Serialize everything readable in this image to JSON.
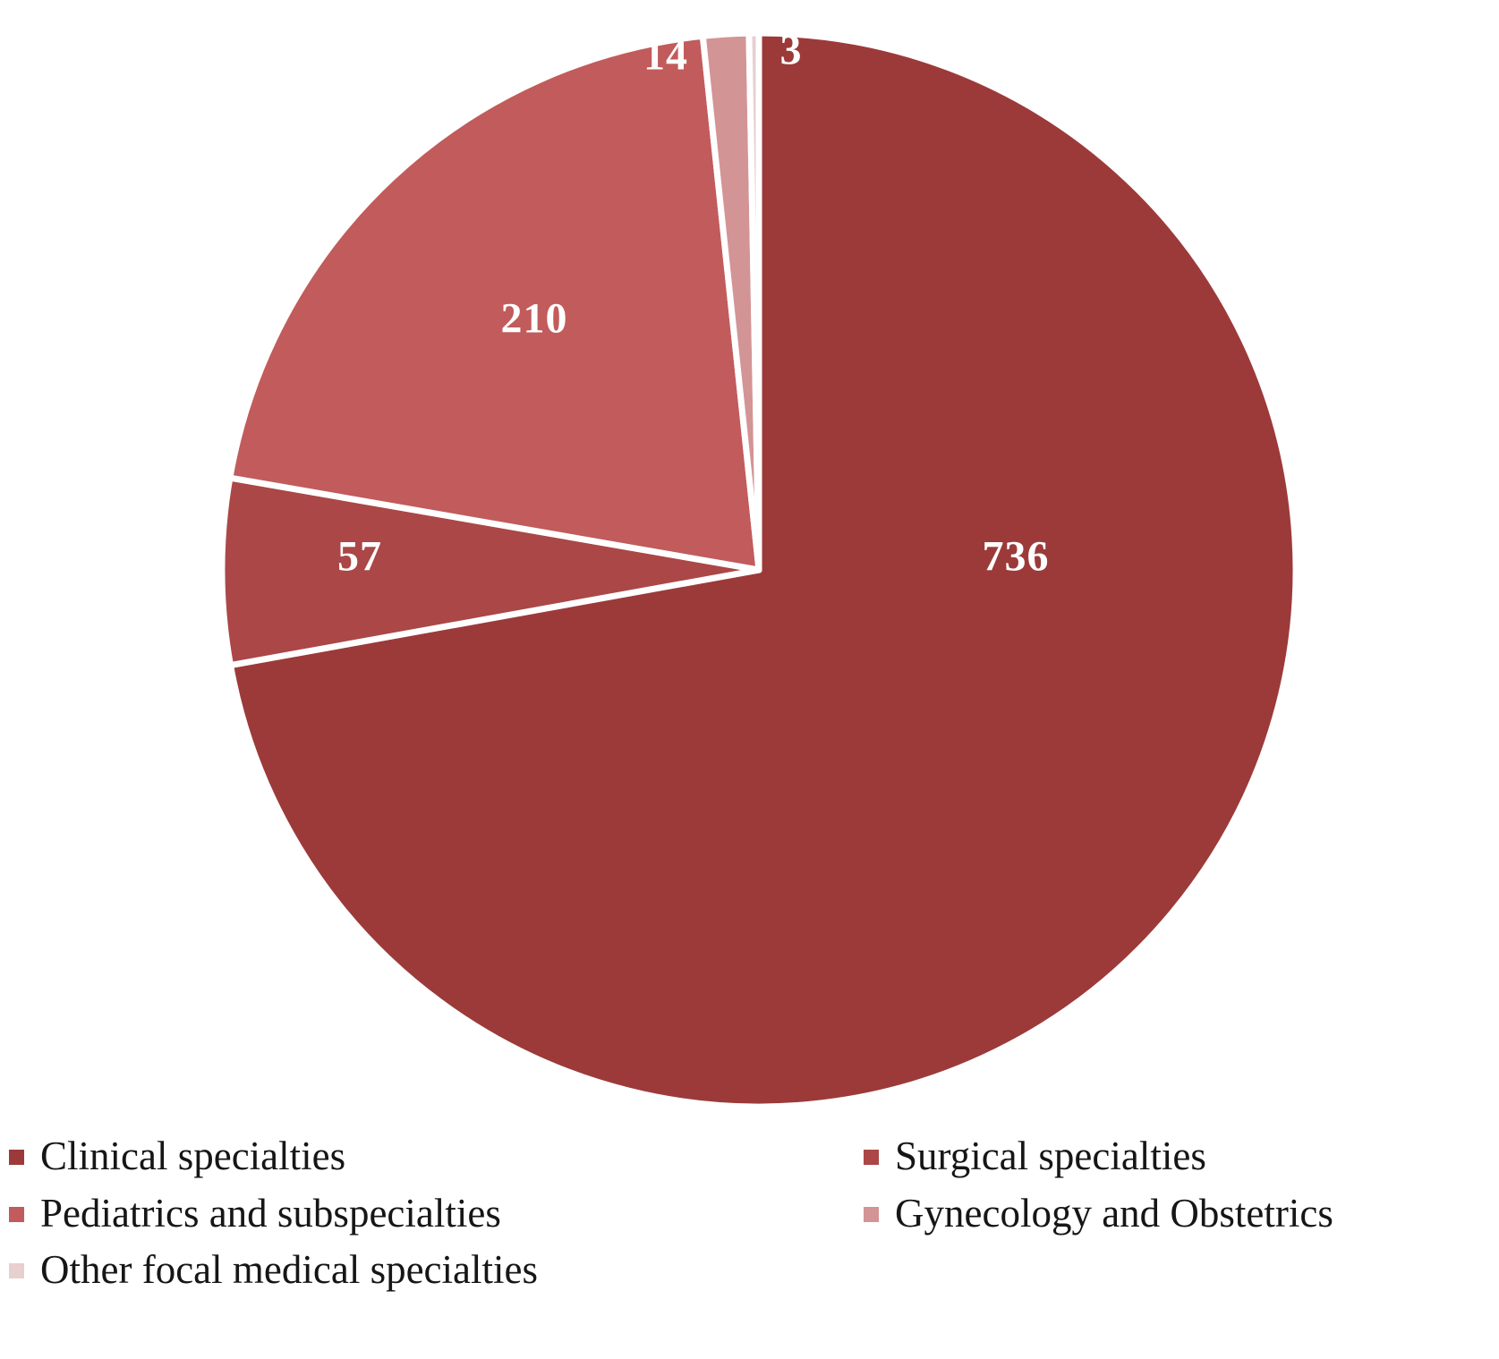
{
  "chart_data": {
    "type": "pie",
    "title": "",
    "categories": [
      "Clinical specialties",
      "Surgical specialties",
      "Pediatrics and subspecialties",
      "Gynecology and Obstetrics",
      "Other focal medical specialties"
    ],
    "values": [
      736,
      57,
      210,
      14,
      3
    ],
    "colors": [
      "#9c3a3a",
      "#ab4747",
      "#c25b5b",
      "#d39496",
      "#e8cfd0"
    ],
    "slice_label_color": "#ffffff",
    "slice_border_color": "#ffffff",
    "start_angle_deg": 0,
    "direction": "clockwise",
    "legend_position": "bottom",
    "legend_columns": 2
  }
}
